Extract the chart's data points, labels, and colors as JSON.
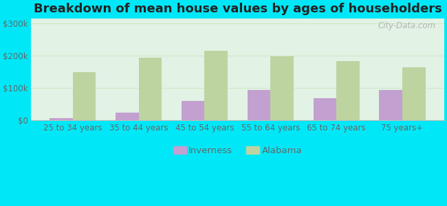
{
  "title": "Breakdown of mean house values by ages of householders",
  "categories": [
    "25 to 34 years",
    "35 to 44 years",
    "45 to 54 years",
    "55 to 64 years",
    "65 to 74 years",
    "75 years+"
  ],
  "inverness_values": [
    8000,
    25000,
    60000,
    95000,
    68000,
    93000
  ],
  "alabama_values": [
    148000,
    193000,
    215000,
    198000,
    183000,
    163000
  ],
  "inverness_color": "#c2a0d0",
  "alabama_color": "#bdd4a0",
  "background_color": "#00e8f8",
  "plot_bg_color": "#e2f2e4",
  "yticks": [
    0,
    100000,
    200000,
    300000
  ],
  "ytick_labels": [
    "$0",
    "$100k",
    "$200k",
    "$300k"
  ],
  "ylim": [
    0,
    315000
  ],
  "bar_width": 0.35,
  "legend_labels": [
    "Inverness",
    "Alabama"
  ],
  "watermark": "City-Data.com",
  "title_fontsize": 13,
  "tick_fontsize": 8.5,
  "legend_fontsize": 9.5,
  "grid_color": "#d0e8c8",
  "spine_color": "#bbbbbb",
  "tick_color": "#666666"
}
